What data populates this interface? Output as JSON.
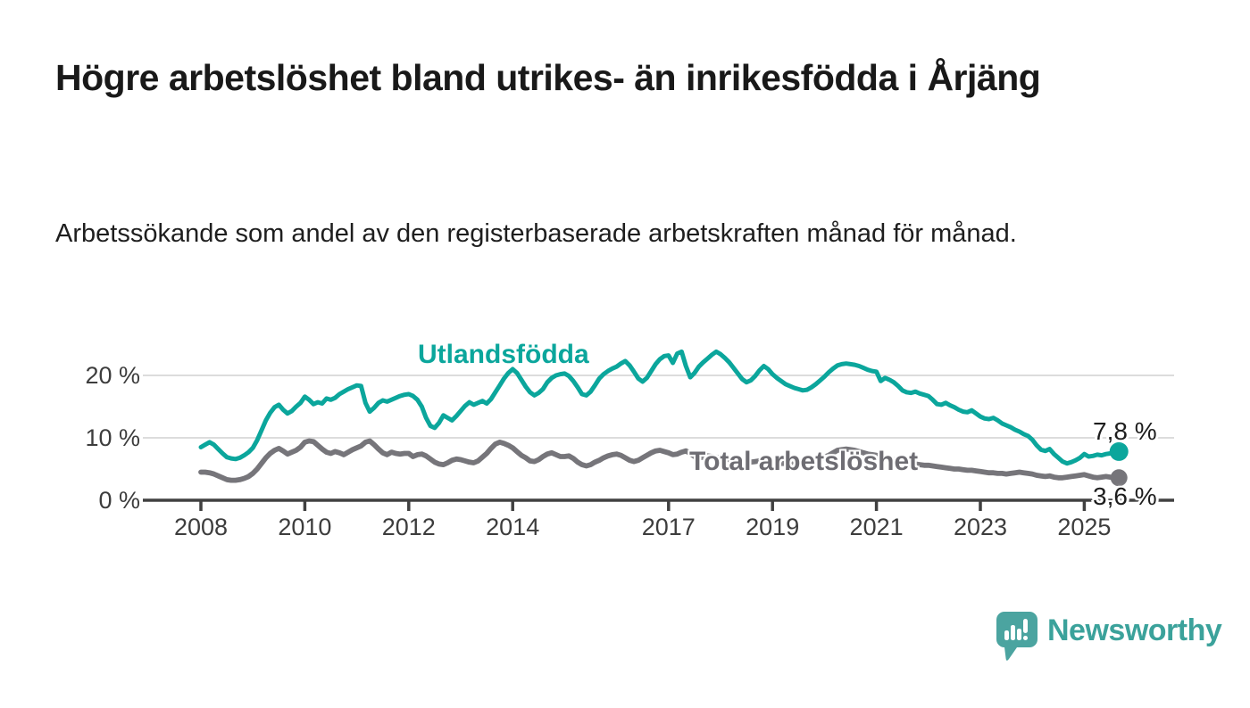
{
  "title": "Högre arbetslöshet bland utrikes- än inrikesfödda i Årjäng",
  "subtitle": "Arbetssökande som andel av den registerbaserade arbetskraften månad för månad.",
  "branding": {
    "name": "Newsworthy",
    "icon": "newsworthy-speech-bubble-bar-chart-icon",
    "wordmark_color": "#3ba29b",
    "icon_color": "#4ba4a0"
  },
  "colors": {
    "title_text": "#191919",
    "axis_text": "#3d3d3d",
    "gridline": "#dcdcdc",
    "axis_line": "#404040",
    "end_label_text": "#1d1d1d"
  },
  "chart_data": {
    "type": "line",
    "grid": "horizontal",
    "x_axis": {
      "tick_labels": [
        "2008",
        "2010",
        "2012",
        "2014",
        "2017",
        "2019",
        "2021",
        "2023",
        "2025"
      ],
      "tick_years": [
        2008,
        2010,
        2012,
        2014,
        2017,
        2019,
        2021,
        2023,
        2025
      ]
    },
    "y_axis": {
      "tick_labels": [
        "20 %",
        "10 %",
        "0 %"
      ],
      "tick_values": [
        20,
        10,
        0
      ],
      "unit": "%",
      "range": [
        0,
        25
      ]
    },
    "x_start_year": 2008,
    "x_step_months": 1,
    "series": [
      {
        "name": "Utlandsfödda",
        "color": "#0ba69c",
        "end_label": "7,8 %",
        "end_value": 7.8,
        "values": [
          8.5,
          8.9,
          9.3,
          8.9,
          8.2,
          7.5,
          6.9,
          6.7,
          6.6,
          6.8,
          7.2,
          7.7,
          8.4,
          9.6,
          11.2,
          12.8,
          14.0,
          14.9,
          15.3,
          14.5,
          13.9,
          14.3,
          15.0,
          15.6,
          16.6,
          16.1,
          15.4,
          15.7,
          15.5,
          16.3,
          16.1,
          16.4,
          17.0,
          17.4,
          17.8,
          18.1,
          18.4,
          18.3,
          15.6,
          14.2,
          14.8,
          15.6,
          16.0,
          15.8,
          16.1,
          16.4,
          16.7,
          16.9,
          17.0,
          16.7,
          16.1,
          15.0,
          13.2,
          11.9,
          11.6,
          12.4,
          13.6,
          13.2,
          12.8,
          13.5,
          14.3,
          15.1,
          15.7,
          15.3,
          15.6,
          15.9,
          15.5,
          16.2,
          17.3,
          18.4,
          19.5,
          20.4,
          21.0,
          20.4,
          19.3,
          18.2,
          17.3,
          16.8,
          17.2,
          17.8,
          18.9,
          19.6,
          20.0,
          20.2,
          20.3,
          19.9,
          19.1,
          18.1,
          17.0,
          16.8,
          17.4,
          18.4,
          19.5,
          20.2,
          20.7,
          21.1,
          21.4,
          21.9,
          22.3,
          21.6,
          20.6,
          19.5,
          19.0,
          19.6,
          20.7,
          21.8,
          22.6,
          23.1,
          23.2,
          22.0,
          23.5,
          23.8,
          21.5,
          19.7,
          20.4,
          21.4,
          22.1,
          22.7,
          23.3,
          23.8,
          23.4,
          22.8,
          22.1,
          21.2,
          20.3,
          19.4,
          18.9,
          19.2,
          19.9,
          20.8,
          21.5,
          21.0,
          20.2,
          19.6,
          19.1,
          18.6,
          18.3,
          18.0,
          17.8,
          17.6,
          17.7,
          18.1,
          18.6,
          19.2,
          19.8,
          20.5,
          21.1,
          21.6,
          21.8,
          21.9,
          21.8,
          21.7,
          21.5,
          21.2,
          20.9,
          20.7,
          20.6,
          19.1,
          19.6,
          19.3,
          18.9,
          18.3,
          17.6,
          17.3,
          17.2,
          17.4,
          17.1,
          16.9,
          16.7,
          16.1,
          15.4,
          15.3,
          15.6,
          15.2,
          14.9,
          14.5,
          14.2,
          14.1,
          14.4,
          13.9,
          13.4,
          13.1,
          13.0,
          13.2,
          12.8,
          12.3,
          12.0,
          11.7,
          11.3,
          11.0,
          10.6,
          10.3,
          9.7,
          8.8,
          8.1,
          7.9,
          8.2,
          7.4,
          6.8,
          6.2,
          5.9,
          6.1,
          6.4,
          6.8,
          7.4,
          7.0,
          7.1,
          7.3,
          7.2,
          7.4,
          7.5,
          7.6,
          7.8
        ]
      },
      {
        "name": "Total arbetslöshet",
        "color": "#76757a",
        "end_label": "3,6 %",
        "end_value": 3.6,
        "values": [
          4.5,
          4.5,
          4.4,
          4.2,
          3.9,
          3.6,
          3.3,
          3.2,
          3.2,
          3.3,
          3.5,
          3.8,
          4.3,
          5.0,
          5.9,
          6.8,
          7.5,
          8.0,
          8.3,
          7.9,
          7.4,
          7.7,
          8.0,
          8.5,
          9.3,
          9.5,
          9.4,
          8.8,
          8.2,
          7.7,
          7.5,
          7.8,
          7.6,
          7.3,
          7.7,
          8.1,
          8.4,
          8.7,
          9.3,
          9.5,
          8.9,
          8.2,
          7.6,
          7.3,
          7.7,
          7.5,
          7.4,
          7.5,
          7.5,
          7.0,
          7.3,
          7.4,
          7.1,
          6.6,
          6.1,
          5.8,
          5.7,
          6.0,
          6.4,
          6.6,
          6.5,
          6.3,
          6.1,
          6.0,
          6.3,
          6.9,
          7.5,
          8.3,
          9.0,
          9.3,
          9.1,
          8.8,
          8.4,
          7.8,
          7.2,
          6.8,
          6.3,
          6.2,
          6.5,
          7.0,
          7.4,
          7.6,
          7.3,
          7.0,
          7.0,
          7.1,
          6.7,
          6.1,
          5.7,
          5.5,
          5.7,
          6.1,
          6.4,
          6.8,
          7.1,
          7.3,
          7.4,
          7.2,
          6.8,
          6.4,
          6.2,
          6.4,
          6.8,
          7.2,
          7.6,
          7.9,
          8.0,
          7.8,
          7.6,
          7.3,
          7.4,
          7.7,
          7.9,
          7.5,
          7.0,
          6.8,
          6.9,
          7.1,
          7.0,
          6.9,
          6.8,
          6.6,
          6.5,
          6.4,
          6.2,
          6.1,
          6.0,
          6.1,
          6.2,
          6.3,
          6.3,
          6.2,
          6.1,
          6.0,
          5.9,
          5.9,
          5.8,
          5.8,
          5.9,
          6.0,
          6.1,
          6.2,
          6.4,
          6.6,
          6.9,
          7.2,
          7.6,
          8.0,
          8.1,
          8.2,
          8.1,
          8.0,
          7.8,
          7.6,
          7.4,
          7.3,
          7.2,
          7.0,
          6.9,
          6.7,
          6.5,
          6.3,
          6.1,
          6.0,
          5.9,
          5.8,
          5.7,
          5.6,
          5.6,
          5.5,
          5.4,
          5.3,
          5.2,
          5.1,
          5.0,
          5.0,
          4.9,
          4.8,
          4.8,
          4.7,
          4.6,
          4.5,
          4.4,
          4.4,
          4.3,
          4.3,
          4.2,
          4.3,
          4.4,
          4.5,
          4.4,
          4.3,
          4.2,
          4.0,
          3.9,
          3.8,
          3.9,
          3.7,
          3.6,
          3.6,
          3.7,
          3.8,
          3.9,
          4.0,
          4.1,
          3.9,
          3.7,
          3.6,
          3.7,
          3.8,
          3.7,
          3.6,
          3.6
        ]
      }
    ]
  }
}
